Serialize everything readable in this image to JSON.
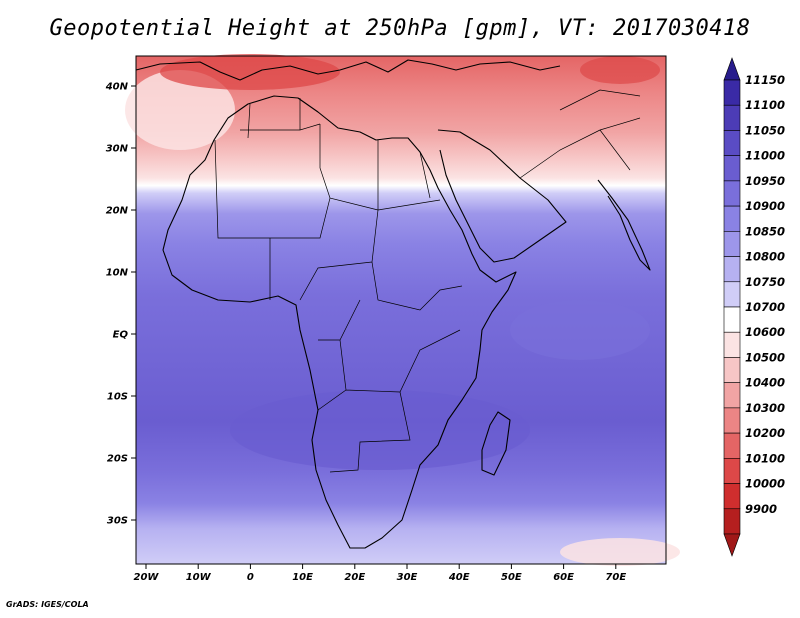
{
  "title": "Geopotential Height at 250hPa [gpm], VT: 2017030418",
  "credit": "GrADS: IGES/COLA",
  "map": {
    "x_axis_labels": [
      "20W",
      "10W",
      "0",
      "10E",
      "20E",
      "30E",
      "40E",
      "50E",
      "60E",
      "70E"
    ],
    "y_axis_labels": [
      "40N",
      "30N",
      "20N",
      "10N",
      "EQ",
      "10S",
      "20S",
      "30S"
    ]
  },
  "colorbar": {
    "levels": [
      "11150",
      "11100",
      "11050",
      "11000",
      "10950",
      "10900",
      "10850",
      "10800",
      "10750",
      "10700",
      "10600",
      "10500",
      "10400",
      "10300",
      "10200",
      "10100",
      "10000",
      "9900"
    ],
    "colors": [
      "#3a2aa6",
      "#4c3cb6",
      "#5a4cc4",
      "#6a5dd0",
      "#7a6fdb",
      "#8a82e4",
      "#9d96ea",
      "#b6b1f1",
      "#d0cdf7",
      "#ffffff",
      "#fbe3e3",
      "#f7c6c6",
      "#f1a4a4",
      "#ec8585",
      "#e46565",
      "#dd4848",
      "#cf2e2e",
      "#b51f1f"
    ],
    "top_arrow_color": "#281c8c",
    "bottom_arrow_color": "#a01818"
  }
}
